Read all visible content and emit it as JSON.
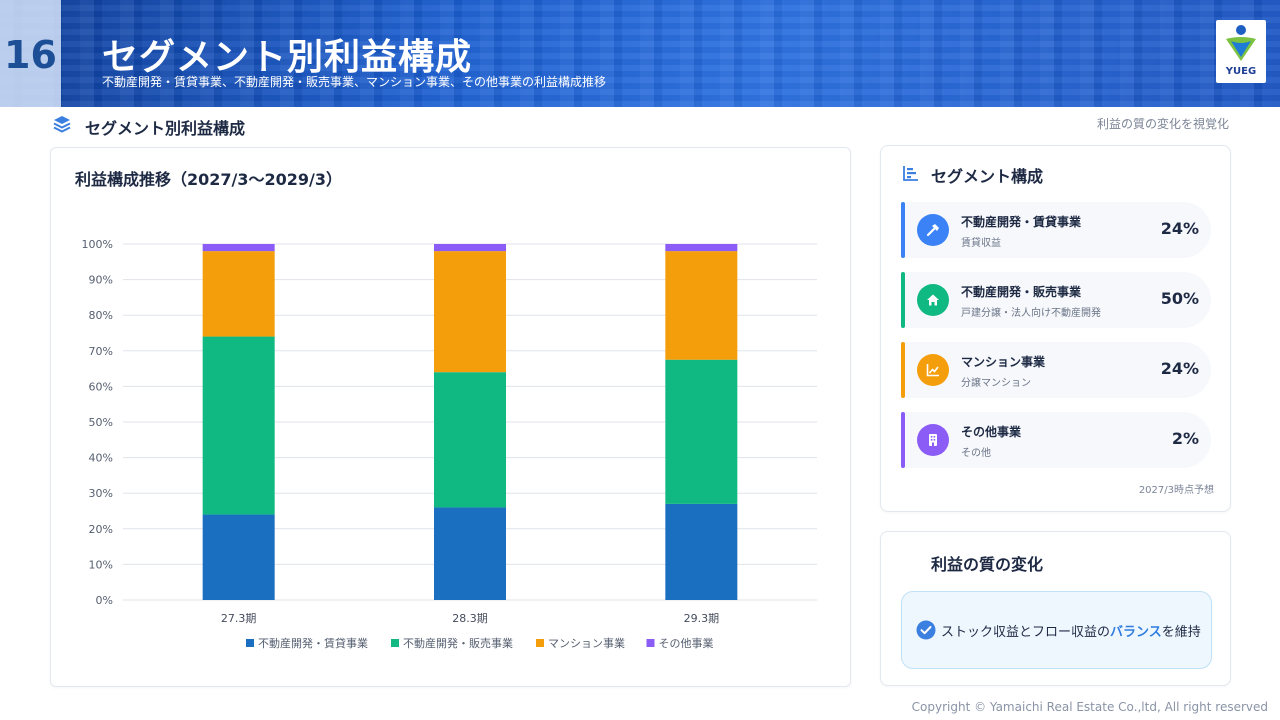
{
  "header": {
    "page_number": "16",
    "title": "セグメント別利益構成",
    "subtitle": "不動産開発・賃貸事業、不動産開発・販売事業、マンション事業、その他事業の利益構成推移",
    "logo_text": "YUEG"
  },
  "section": {
    "title": "セグメント別利益構成",
    "note": "利益の質の変化を視覚化",
    "icon": "layers-icon"
  },
  "chart_data": {
    "type": "bar",
    "stacked": true,
    "title": "利益構成推移（2027/3〜2029/3）",
    "categories": [
      "27.3期",
      "28.3期",
      "29.3期"
    ],
    "series": [
      {
        "name": "不動産開発・賃貸事業",
        "color": "#1b6fc0",
        "values": [
          24,
          26,
          27
        ]
      },
      {
        "name": "不動産開発・販売事業",
        "color": "#10b981",
        "values": [
          50,
          38,
          40.5
        ]
      },
      {
        "name": "マンション事業",
        "color": "#f59e0b",
        "values": [
          24,
          34,
          30.5
        ]
      },
      {
        "name": "その他事業",
        "color": "#8b5cf6",
        "values": [
          2,
          2,
          2
        ]
      }
    ],
    "ylim": [
      0,
      100
    ],
    "yticks": [
      "0%",
      "10%",
      "20%",
      "30%",
      "40%",
      "50%",
      "60%",
      "70%",
      "80%",
      "90%",
      "100%"
    ],
    "grid": true,
    "legend": "bottom"
  },
  "segments": {
    "title": "セグメント構成",
    "icon": "bar-chart-icon",
    "items": [
      {
        "name": "不動産開発・賃貸事業",
        "desc": "賃貸収益",
        "pct": "24%",
        "color": "#3b82f6",
        "bar_color": "#3b82f6",
        "icon": "hammer-icon"
      },
      {
        "name": "不動産開発・販売事業",
        "desc": "戸建分譲・法人向け不動産開発",
        "pct": "50%",
        "color": "#10b981",
        "bar_color": "#10b981",
        "icon": "home-icon"
      },
      {
        "name": "マンション事業",
        "desc": "分譲マンション",
        "pct": "24%",
        "color": "#f59e0b",
        "bar_color": "#f59e0b",
        "icon": "chart-line-icon"
      },
      {
        "name": "その他事業",
        "desc": "その他",
        "pct": "2%",
        "color": "#8b5cf6",
        "bar_color": "#8b5cf6",
        "icon": "building-icon"
      }
    ],
    "note": "2027/3時点予想"
  },
  "quality": {
    "title": "利益の質の変化",
    "text_before": "ストック収益とフロー収益の",
    "highlight": "バランス",
    "text_after": "を維持"
  },
  "footer": {
    "copyright": "Copyright © Yamaichi Real Estate Co.,ltd, All right reserved"
  }
}
